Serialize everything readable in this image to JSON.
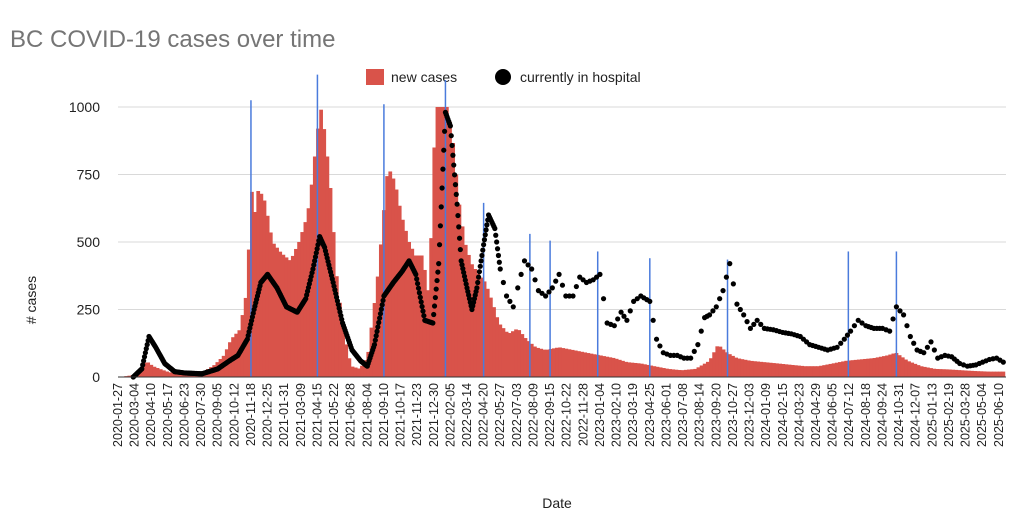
{
  "chart_data": {
    "type": "bar",
    "title": "BC COVID-19 cases over time",
    "xlabel": "Date",
    "ylabel": "# cases",
    "ylim": [
      0,
      1100
    ],
    "y_ticks": [
      0,
      250,
      500,
      750,
      1000
    ],
    "x_range": [
      "2020-01-27",
      "2025-06-26"
    ],
    "x_tick_labels": [
      "2020-01-27",
      "2020-03-04",
      "2020-04-10",
      "2020-05-17",
      "2020-06-23",
      "2020-07-30",
      "2020-09-05",
      "2020-10-12",
      "2020-11-18",
      "2020-12-25",
      "2021-01-31",
      "2021-03-09",
      "2021-04-15",
      "2021-05-22",
      "2021-06-28",
      "2021-08-04",
      "2021-09-10",
      "2021-10-17",
      "2021-11-23",
      "2021-12-30",
      "2022-02-05",
      "2022-03-14",
      "2022-04-20",
      "2022-05-27",
      "2022-07-03",
      "2022-08-09",
      "2022-09-15",
      "2022-10-22",
      "2022-11-28",
      "2023-01-04",
      "2023-02-10",
      "2023-03-19",
      "2023-04-25",
      "2023-06-01",
      "2023-07-08",
      "2023-08-14",
      "2023-09-20",
      "2023-10-27",
      "2023-12-03",
      "2024-01-09",
      "2024-02-15",
      "2024-03-23",
      "2024-04-29",
      "2024-06-05",
      "2024-07-12",
      "2024-08-18",
      "2024-09-24",
      "2024-10-31",
      "2024-12-07",
      "2025-01-13",
      "2025-02-19",
      "2025-03-28",
      "2025-05-04",
      "2025-06-10"
    ],
    "grid": true,
    "legend_position": "top",
    "colors": {
      "cases": "#d9534a",
      "hospital": "#000000",
      "markers": "#4a7bdc",
      "title": "#757575",
      "grid": "#d9d9d9"
    },
    "series": [
      {
        "name": "new cases",
        "type": "bar",
        "color": "#d9534a",
        "x": [
          "2020-01-27",
          "2020-03-10",
          "2020-03-25",
          "2020-04-10",
          "2020-04-25",
          "2020-05-15",
          "2020-06-05",
          "2020-07-01",
          "2020-08-01",
          "2020-08-25",
          "2020-09-15",
          "2020-10-01",
          "2020-10-20",
          "2020-11-05",
          "2020-11-15",
          "2020-11-22",
          "2020-12-01",
          "2020-12-15",
          "2021-01-01",
          "2021-01-20",
          "2021-02-10",
          "2021-03-01",
          "2021-03-20",
          "2021-04-01",
          "2021-04-10",
          "2021-04-20",
          "2021-05-01",
          "2021-05-10",
          "2021-05-25",
          "2021-06-10",
          "2021-06-25",
          "2021-07-15",
          "2021-08-01",
          "2021-08-15",
          "2021-08-25",
          "2021-09-05",
          "2021-09-15",
          "2021-10-01",
          "2021-10-15",
          "2021-11-01",
          "2021-11-15",
          "2021-12-01",
          "2021-12-15",
          "2021-12-22",
          "2021-12-30",
          "2022-01-10",
          "2022-01-25",
          "2022-02-05",
          "2022-02-20",
          "2022-03-05",
          "2022-03-20",
          "2022-04-05",
          "2022-04-20",
          "2022-05-05",
          "2022-05-20",
          "2022-06-10",
          "2022-07-01",
          "2022-07-20",
          "2022-08-10",
          "2022-09-01",
          "2022-10-01",
          "2022-11-01",
          "2022-12-01",
          "2023-01-01",
          "2023-02-01",
          "2023-03-01",
          "2023-04-01",
          "2023-05-01",
          "2023-06-01",
          "2023-07-01",
          "2023-08-01",
          "2023-09-01",
          "2023-09-20",
          "2023-10-10",
          "2023-11-01",
          "2023-12-01",
          "2024-01-01",
          "2024-02-01",
          "2024-03-01",
          "2024-04-01",
          "2024-05-01",
          "2024-06-01",
          "2024-07-01",
          "2024-08-01",
          "2024-09-01",
          "2024-10-01",
          "2024-10-20",
          "2024-11-15",
          "2024-12-15",
          "2025-01-15",
          "2025-02-15",
          "2025-03-15",
          "2025-04-15",
          "2025-05-15",
          "2025-06-20"
        ],
        "values": [
          0,
          10,
          60,
          40,
          30,
          18,
          12,
          15,
          20,
          45,
          80,
          140,
          175,
          320,
          700,
          600,
          700,
          650,
          500,
          460,
          430,
          500,
          600,
          750,
          900,
          1000,
          850,
          700,
          350,
          150,
          40,
          30,
          80,
          260,
          400,
          600,
          780,
          720,
          600,
          500,
          450,
          450,
          300,
          600,
          1000,
          1000,
          1000,
          900,
          650,
          500,
          420,
          380,
          350,
          280,
          200,
          160,
          180,
          140,
          110,
          100,
          110,
          100,
          90,
          80,
          70,
          55,
          50,
          40,
          30,
          25,
          30,
          60,
          120,
          90,
          70,
          60,
          55,
          50,
          45,
          40,
          40,
          50,
          60,
          65,
          70,
          80,
          90,
          60,
          40,
          30,
          28,
          25,
          22,
          20,
          20
        ]
      },
      {
        "name": "currently in hospital",
        "type": "scatter",
        "color": "#000000",
        "x": [
          "2020-03-01",
          "2020-03-20",
          "2020-04-05",
          "2020-04-20",
          "2020-05-10",
          "2020-06-01",
          "2020-06-23",
          "2020-08-01",
          "2020-09-05",
          "2020-10-01",
          "2020-10-20",
          "2020-11-10",
          "2020-11-25",
          "2020-12-10",
          "2020-12-25",
          "2021-01-15",
          "2021-02-05",
          "2021-03-01",
          "2021-03-20",
          "2021-04-05",
          "2021-04-20",
          "2021-05-01",
          "2021-05-20",
          "2021-06-10",
          "2021-07-01",
          "2021-07-20",
          "2021-08-04",
          "2021-08-20",
          "2021-09-10",
          "2021-10-01",
          "2021-10-20",
          "2021-11-05",
          "2021-11-20",
          "2021-12-10",
          "2021-12-28",
          "2022-01-10",
          "2022-01-25",
          "2022-02-05",
          "2022-02-20",
          "2022-03-01",
          "2022-03-14",
          "2022-03-25",
          "2022-04-05",
          "2022-04-20",
          "2022-05-01",
          "2022-05-15",
          "2022-05-27",
          "2022-06-10",
          "2022-06-25",
          "2022-07-05",
          "2022-07-20",
          "2022-08-05",
          "2022-08-20",
          "2022-09-05",
          "2022-09-20",
          "2022-10-05",
          "2022-10-20",
          "2022-11-05",
          "2022-11-20",
          "2022-12-05",
          "2022-12-20",
          "2023-01-04",
          "2023-01-20",
          "2023-02-05",
          "2023-02-20",
          "2023-03-05",
          "2023-03-20",
          "2023-04-05",
          "2023-04-25",
          "2023-05-10",
          "2023-05-25",
          "2023-06-10",
          "2023-06-25",
          "2023-07-10",
          "2023-07-25",
          "2023-08-10",
          "2023-08-25",
          "2023-09-05",
          "2023-09-20",
          "2023-10-05",
          "2023-10-20",
          "2023-11-05",
          "2023-11-20",
          "2023-12-05",
          "2023-12-20",
          "2024-01-05",
          "2024-01-25",
          "2024-02-15",
          "2024-03-05",
          "2024-03-25",
          "2024-04-15",
          "2024-05-05",
          "2024-05-25",
          "2024-06-15",
          "2024-07-01",
          "2024-07-15",
          "2024-08-01",
          "2024-08-18",
          "2024-09-05",
          "2024-09-24",
          "2024-10-10",
          "2024-10-25",
          "2024-11-10",
          "2024-11-25",
          "2024-12-10",
          "2024-12-25",
          "2025-01-10",
          "2025-01-25",
          "2025-02-10",
          "2025-02-25",
          "2025-03-15",
          "2025-04-01",
          "2025-04-20",
          "2025-05-05",
          "2025-05-20",
          "2025-06-05",
          "2025-06-20"
        ],
        "values": [
          0,
          30,
          150,
          110,
          50,
          20,
          15,
          12,
          30,
          60,
          80,
          140,
          250,
          350,
          380,
          330,
          260,
          240,
          290,
          400,
          520,
          480,
          350,
          200,
          100,
          60,
          40,
          120,
          300,
          350,
          390,
          430,
          380,
          210,
          200,
          420,
          980,
          930,
          640,
          430,
          330,
          250,
          330,
          490,
          600,
          550,
          400,
          300,
          260,
          330,
          430,
          400,
          320,
          300,
          330,
          380,
          300,
          300,
          370,
          350,
          360,
          380,
          200,
          190,
          240,
          210,
          280,
          300,
          280,
          140,
          90,
          80,
          80,
          70,
          70,
          120,
          220,
          230,
          260,
          320,
          420,
          270,
          230,
          180,
          210,
          180,
          175,
          165,
          160,
          150,
          120,
          110,
          100,
          110,
          140,
          170,
          210,
          190,
          180,
          180,
          170,
          260,
          230,
          150,
          100,
          90,
          130,
          70,
          80,
          75,
          50,
          40,
          45,
          55,
          65,
          70,
          55
        ]
      },
      {
        "name": "",
        "type": "vertical_markers",
        "color": "#4a7bdc",
        "x": [
          "2020-11-18",
          "2021-04-15",
          "2021-09-10",
          "2022-01-25",
          "2022-04-20",
          "2022-08-01",
          "2022-09-15",
          "2022-12-30",
          "2023-04-25",
          "2023-10-15",
          "2024-07-10",
          "2024-10-25"
        ],
        "values": [
          1025,
          1120,
          1010,
          1100,
          645,
          530,
          505,
          465,
          440,
          435,
          465,
          465
        ]
      }
    ]
  }
}
